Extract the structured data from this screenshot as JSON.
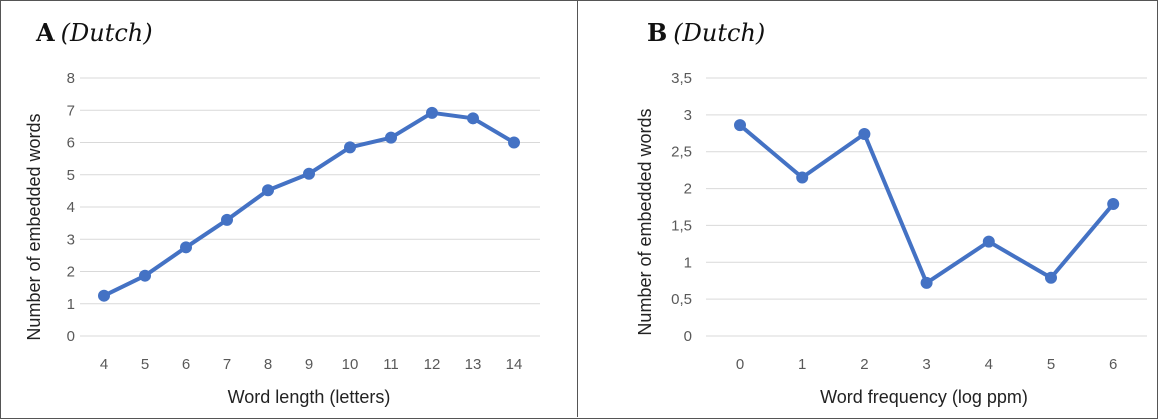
{
  "panels": [
    {
      "letter": "A",
      "language": "(Dutch)"
    },
    {
      "letter": "B",
      "language": "(Dutch)"
    }
  ],
  "chart_data": [
    {
      "type": "line",
      "x": [
        "4",
        "5",
        "6",
        "7",
        "8",
        "9",
        "10",
        "11",
        "12",
        "13",
        "14"
      ],
      "series": [
        {
          "values": [
            1.25,
            1.87,
            2.75,
            3.6,
            4.52,
            5.03,
            5.85,
            6.15,
            6.92,
            6.75,
            6.0
          ]
        }
      ],
      "xlabel": "Word length (letters)",
      "ylabel": "Number of embedded words",
      "ylim": [
        0,
        8
      ],
      "yticks": [
        "0",
        "1",
        "2",
        "3",
        "4",
        "5",
        "6",
        "7",
        "8"
      ],
      "grid": true,
      "color": "#4472C4"
    },
    {
      "type": "line",
      "x": [
        "0",
        "1",
        "2",
        "3",
        "4",
        "5",
        "6"
      ],
      "series": [
        {
          "values": [
            2.86,
            2.15,
            2.74,
            0.72,
            1.28,
            0.79,
            1.79
          ]
        }
      ],
      "xlabel": "Word frequency (log ppm)",
      "ylabel": "Number of embedded words",
      "ylim": [
        0,
        3.5
      ],
      "yticks": [
        "0",
        "0,5",
        "1",
        "1,5",
        "2",
        "2,5",
        "3",
        "3,5"
      ],
      "grid": true,
      "color": "#4472C4"
    }
  ]
}
